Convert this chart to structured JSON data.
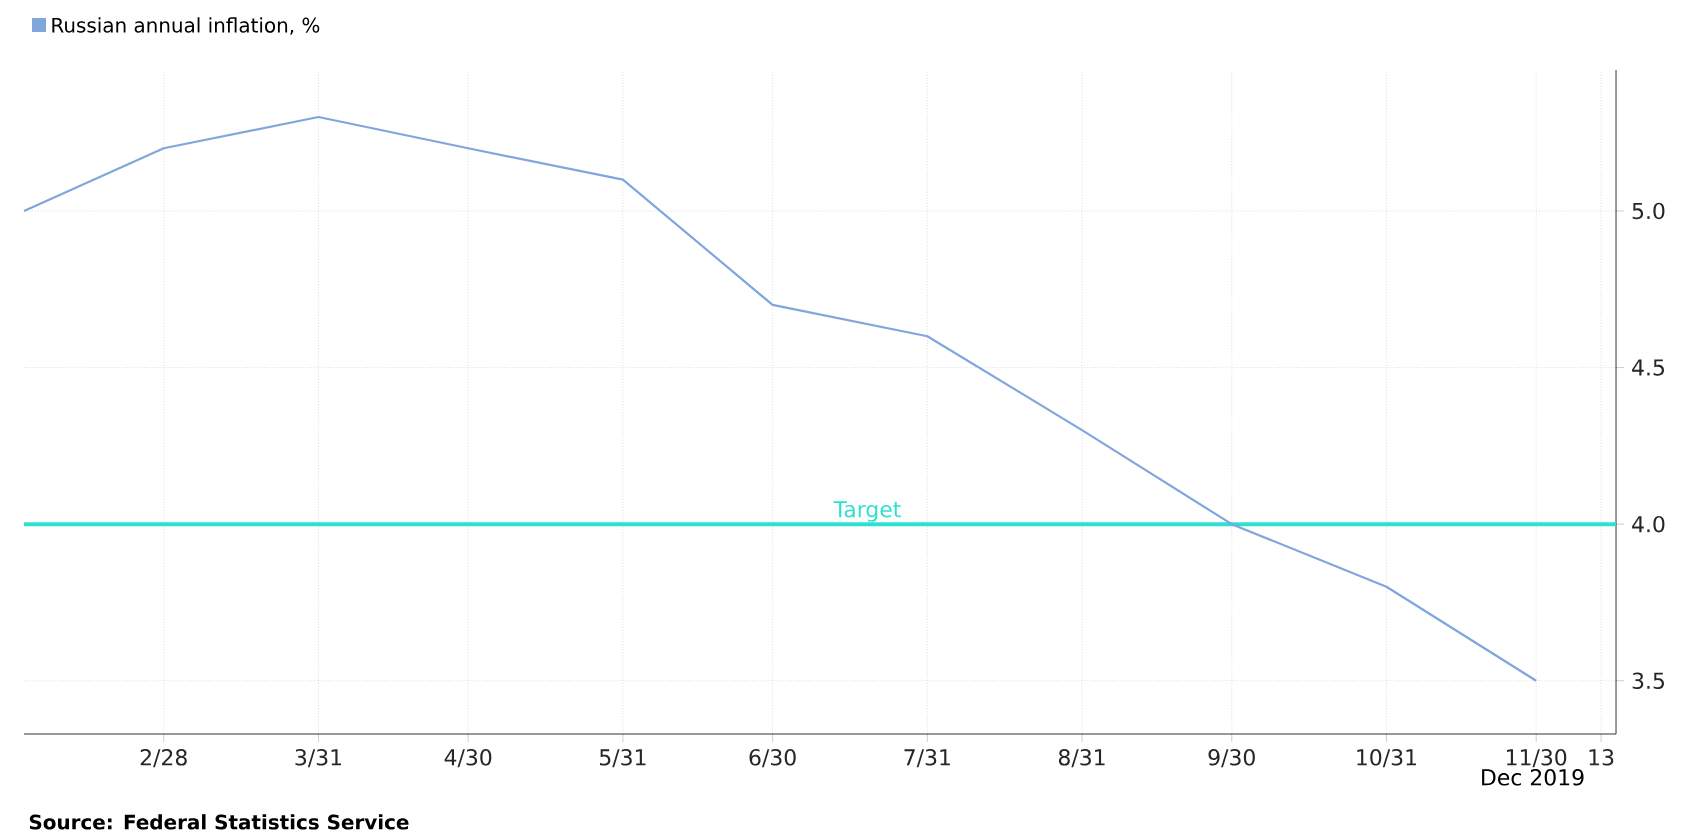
{
  "chart_data": {
    "type": "line",
    "xlabel": "Dec 2019",
    "x": [
      "2019-01-31",
      "2019-02-28",
      "2019-03-31",
      "2019-04-30",
      "2019-05-31",
      "2019-06-30",
      "2019-07-31",
      "2019-08-31",
      "2019-09-30",
      "2019-10-31",
      "2019-11-30"
    ],
    "series": [
      {
        "name": "Russian annual inflation, %",
        "color": "#7fa6dd",
        "values": [
          5.0,
          5.2,
          5.3,
          5.2,
          5.1,
          4.7,
          4.6,
          4.3,
          4.0,
          3.8,
          3.5
        ]
      }
    ],
    "xlim": [
      "2019-01-31",
      "2019-12-16"
    ],
    "xticks": [
      {
        "value": "2019-02-28",
        "label": "2/28"
      },
      {
        "value": "2019-03-31",
        "label": "3/31"
      },
      {
        "value": "2019-04-30",
        "label": "4/30"
      },
      {
        "value": "2019-05-31",
        "label": "5/31"
      },
      {
        "value": "2019-06-30",
        "label": "6/30"
      },
      {
        "value": "2019-07-31",
        "label": "7/31"
      },
      {
        "value": "2019-08-31",
        "label": "8/31"
      },
      {
        "value": "2019-09-30",
        "label": "9/30"
      },
      {
        "value": "2019-10-31",
        "label": "10/31"
      },
      {
        "value": "2019-11-30",
        "label": "11/30"
      },
      {
        "value": "2019-12-13",
        "label": "13"
      }
    ],
    "ylim": [
      3.33,
      5.45
    ],
    "yticks": [
      {
        "value": 3.5,
        "label": "3.5"
      },
      {
        "value": 4.0,
        "label": "4.0"
      },
      {
        "value": 4.5,
        "label": "4.5"
      },
      {
        "value": 5.0,
        "label": "5.0"
      }
    ],
    "ref_lines": [
      {
        "axis": "y",
        "value": 4.0,
        "label": "Target",
        "color": "#2ee0d0"
      }
    ],
    "annotations": [
      "Source: Federal Statistics Service"
    ],
    "grid": true,
    "legend": "top left",
    "marker": "none",
    "line_style": "solid"
  }
}
